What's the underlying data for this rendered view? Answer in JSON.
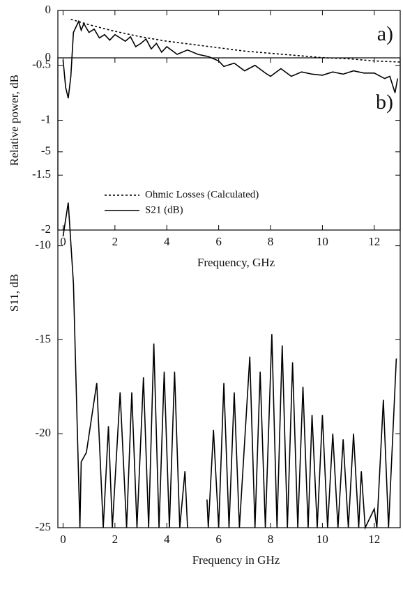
{
  "chart_data": [
    {
      "type": "line",
      "annotation": "a)",
      "x_label": "Frequency, GHz",
      "y_label": "Relative power, dB",
      "xlim": [
        -0.2,
        13
      ],
      "xticks": [
        0,
        2,
        4,
        6,
        8,
        10,
        12
      ],
      "ylim": [
        -2,
        0
      ],
      "yticks": [
        0,
        -0.5,
        -1,
        -1.5,
        -2
      ],
      "series": [
        {
          "name": "Ohmic Losses (Calculated)",
          "color": "#000000",
          "line_style": "dotted",
          "x": [
            0.3,
            1,
            2,
            3,
            4,
            5,
            6,
            7,
            8,
            9,
            10,
            11,
            12,
            13
          ],
          "values": [
            -0.08,
            -0.13,
            -0.19,
            -0.24,
            -0.28,
            -0.31,
            -0.34,
            -0.37,
            -0.39,
            -0.41,
            -0.43,
            -0.44,
            -0.46,
            -0.47
          ]
        },
        {
          "name": "S21 (dB)",
          "color": "#000000",
          "line_style": "solid",
          "x": [
            0,
            0.1,
            0.2,
            0.3,
            0.4,
            0.5,
            0.6,
            0.7,
            0.8,
            1.0,
            1.2,
            1.4,
            1.6,
            1.8,
            2.0,
            2.2,
            2.4,
            2.6,
            2.8,
            3.0,
            3.2,
            3.4,
            3.6,
            3.8,
            4.0,
            4.4,
            4.8,
            5.2,
            5.6,
            6.0,
            6.2,
            6.6,
            7.0,
            7.4,
            7.8,
            8.0,
            8.4,
            8.8,
            9.2,
            9.6,
            10.0,
            10.4,
            10.8,
            11.2,
            11.6,
            12.0,
            12.4,
            12.6,
            12.8,
            12.9
          ],
          "values": [
            -0.45,
            -0.7,
            -0.8,
            -0.6,
            -0.2,
            -0.15,
            -0.1,
            -0.18,
            -0.12,
            -0.2,
            -0.17,
            -0.25,
            -0.22,
            -0.27,
            -0.22,
            -0.25,
            -0.28,
            -0.24,
            -0.33,
            -0.3,
            -0.26,
            -0.35,
            -0.3,
            -0.38,
            -0.33,
            -0.4,
            -0.36,
            -0.4,
            -0.42,
            -0.46,
            -0.51,
            -0.48,
            -0.55,
            -0.5,
            -0.57,
            -0.6,
            -0.53,
            -0.6,
            -0.56,
            -0.58,
            -0.59,
            -0.56,
            -0.58,
            -0.55,
            -0.57,
            -0.57,
            -0.62,
            -0.6,
            -0.75,
            -0.62
          ]
        }
      ]
    },
    {
      "type": "line",
      "annotation": "b)",
      "x_label": "Frequency  in GHz",
      "y_label": "S11, dB",
      "xlim": [
        -0.2,
        13
      ],
      "xticks": [
        0,
        2,
        4,
        6,
        8,
        10,
        12
      ],
      "ylim": [
        -25,
        0
      ],
      "yticks": [
        0,
        -5,
        -10,
        -15,
        -20,
        -25
      ],
      "series": [
        {
          "color": "#000000",
          "line_style": "solid",
          "x": [
            0,
            0.2,
            0.4,
            0.65,
            0.7,
            0.9,
            1.3,
            1.55,
            1.75,
            1.9,
            2.2,
            2.45,
            2.65,
            2.85,
            3.1,
            3.3,
            3.5,
            3.7,
            3.9,
            4.1,
            4.3,
            4.5,
            4.7,
            4.8,
            5.5,
            5.55,
            5.6,
            5.8,
            6.0,
            6.2,
            6.4,
            6.6,
            6.8,
            7.2,
            7.4,
            7.6,
            7.8,
            8.05,
            8.25,
            8.45,
            8.65,
            8.85,
            9.05,
            9.25,
            9.45,
            9.6,
            9.8,
            10.0,
            10.2,
            10.4,
            10.6,
            10.8,
            11.0,
            11.2,
            11.4,
            11.5,
            11.65,
            12.0,
            12.1,
            12.35,
            12.55,
            12.85
          ],
          "values": [
            -9.5,
            -7.7,
            -12,
            -25,
            -21.5,
            -21,
            -17.3,
            -25,
            -19.6,
            -25,
            -17.8,
            -25,
            -17.8,
            -25,
            -17,
            -25,
            -15.2,
            -25,
            -16.7,
            -25,
            -16.7,
            -25,
            -22,
            -25,
            null,
            -23.5,
            -25,
            -19.8,
            -25,
            -17.3,
            -25,
            -17.8,
            -25,
            -15.9,
            -25,
            -16.7,
            -25,
            -14.7,
            -25,
            -15.3,
            -25,
            -16.2,
            -25,
            -17.5,
            -25,
            -19,
            -25,
            -19,
            -25,
            -20,
            -25,
            -20.3,
            -25,
            -20,
            -25,
            -22,
            -25,
            -24,
            -25,
            -18.2,
            -25,
            -16
          ]
        }
      ]
    }
  ]
}
